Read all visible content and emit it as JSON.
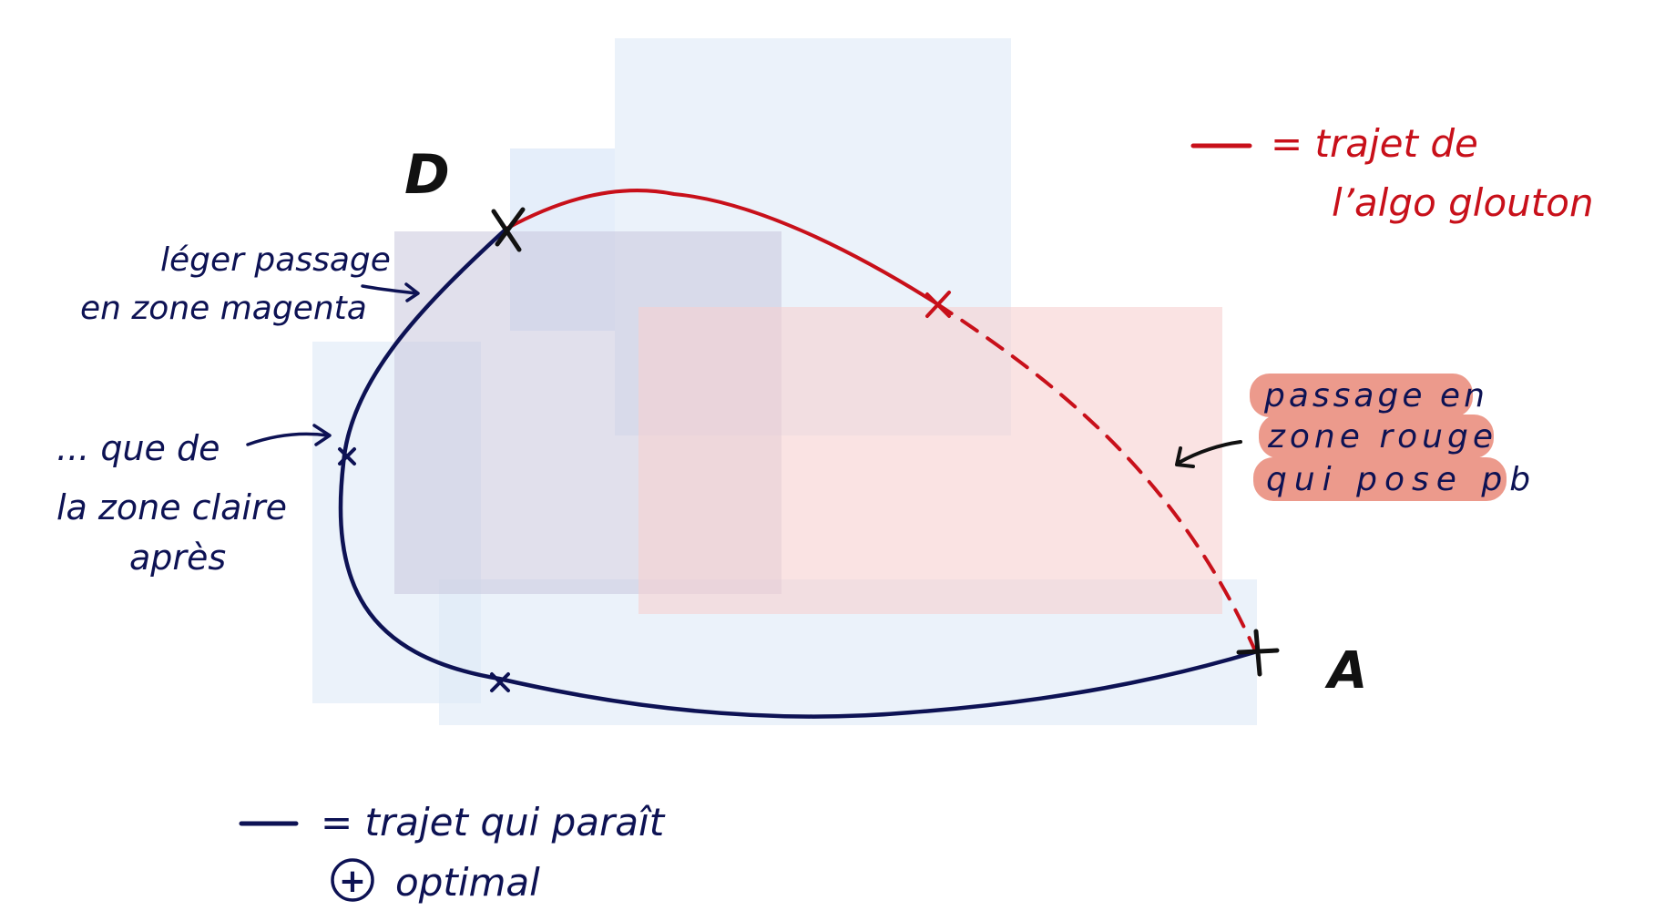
{
  "points": {
    "start": "D",
    "end": "A"
  },
  "legend": {
    "red_line_1": "= trajet de",
    "red_line_2": "l’algo glouton",
    "navy_line_1": "= trajet qui paraît",
    "navy_line_2": "optimal",
    "plus_symbol": "+"
  },
  "annotations": {
    "magenta_1": "léger passage",
    "magenta_2": "en zone magenta",
    "clear_1": "... que de",
    "clear_2": "la zone claire",
    "clear_3": "après",
    "red_zone_1": "passage en",
    "red_zone_2": "zone rouge",
    "red_zone_3": "qui pose pb"
  },
  "colors": {
    "navy": "#0d1254",
    "red": "#c8101a",
    "light_blue_zone": "#dde9f7",
    "magenta_zone": "#d6d3e4",
    "red_zone": "#f8dcdc",
    "highlight": "#ec9a8c"
  }
}
